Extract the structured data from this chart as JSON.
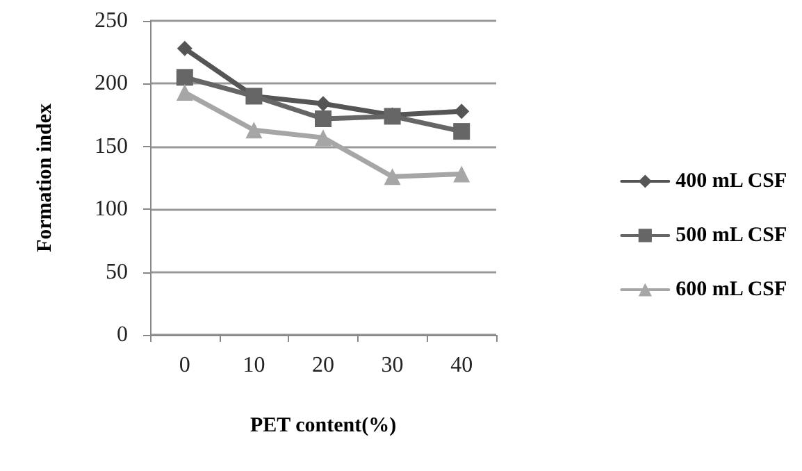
{
  "chart_data": {
    "type": "line",
    "xlabel": "PET content(%)",
    "ylabel": "Formation index",
    "categories": [
      "0",
      "10",
      "20",
      "30",
      "40"
    ],
    "series": [
      {
        "name": "400 mL CSF",
        "color": "#555555",
        "marker": "diamond",
        "values": [
          228,
          190,
          184,
          175,
          178
        ]
      },
      {
        "name": "500 mL CSF",
        "color": "#666666",
        "marker": "square",
        "values": [
          205,
          190,
          172,
          174,
          162
        ]
      },
      {
        "name": "600 mL CSF",
        "color": "#a6a6a6",
        "marker": "triangle",
        "values": [
          193,
          163,
          157,
          126,
          128
        ]
      }
    ],
    "ylim": [
      0,
      250
    ],
    "yticks": [
      0,
      50,
      100,
      150,
      200,
      250
    ],
    "grid": "y",
    "legend": "right"
  }
}
